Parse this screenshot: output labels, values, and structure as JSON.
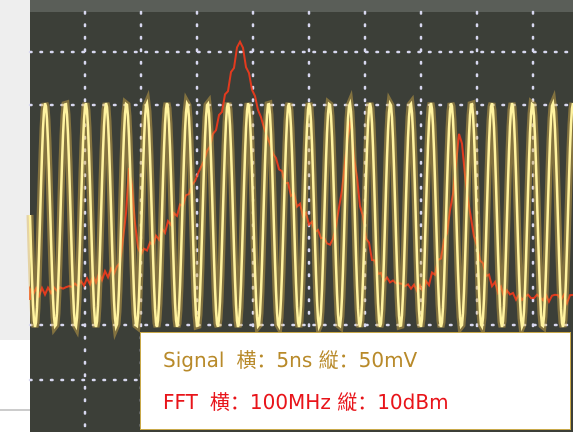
{
  "annotation": {
    "lines": [
      {
        "label": "Signal",
        "text": "横：5ns 縦：50mV"
      },
      {
        "label": "FFT",
        "text": "横：100MHz 縦：10dBm"
      }
    ]
  }
}
